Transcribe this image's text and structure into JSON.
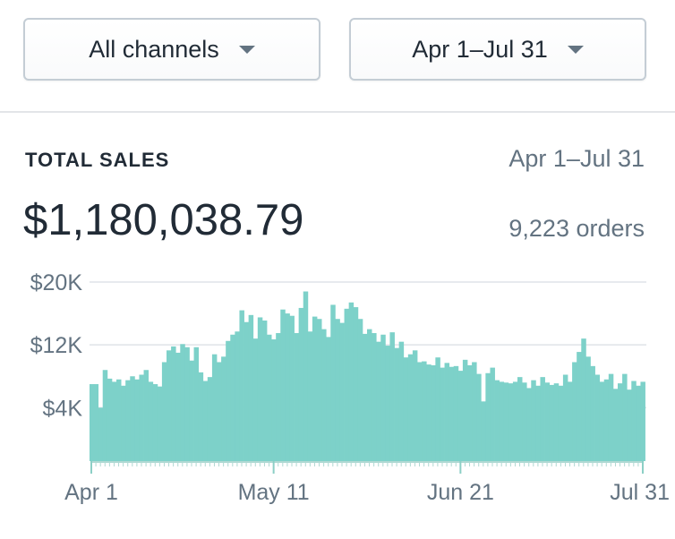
{
  "filters": {
    "channel_label": "All channels",
    "range_label": "Apr 1–Jul 31"
  },
  "card": {
    "title": "TOTAL SALES",
    "range": "Apr 1–Jul 31",
    "total": "$1,180,038.79",
    "orders": "9,223 orders"
  },
  "colors": {
    "area": "#7dd1c9",
    "grid": "#dfe3e8",
    "axis": "#b0d9d3"
  },
  "chart_data": {
    "type": "bar",
    "x_start": "Apr 1",
    "x_end": "Jul 31",
    "xtick_labels": [
      "Apr 1",
      "May 11",
      "Jun 21",
      "Jul 31"
    ],
    "xtick_days": [
      0,
      40,
      81,
      121
    ],
    "ytick_labels": [
      "$4K",
      "$12K",
      "$20K"
    ],
    "ytick_values": [
      4000,
      12000,
      20000
    ],
    "ylim": [
      -2800,
      20000
    ],
    "grid": true,
    "values": [
      7000,
      7000,
      4000,
      8800,
      7700,
      7300,
      7600,
      6800,
      7500,
      8000,
      7600,
      8200,
      8800,
      7300,
      7000,
      6700,
      9800,
      11300,
      11800,
      11000,
      12100,
      11700,
      10000,
      11700,
      8500,
      7400,
      7900,
      10800,
      9800,
      10500,
      12500,
      13300,
      13700,
      16400,
      14900,
      15800,
      12800,
      15500,
      15100,
      13300,
      12700,
      13500,
      16500,
      16000,
      15700,
      13500,
      16700,
      18800,
      13700,
      15600,
      15300,
      14000,
      13000,
      17100,
      15300,
      14800,
      16600,
      17400,
      16800,
      15300,
      13400,
      14000,
      13500,
      12400,
      13300,
      11900,
      13600,
      11600,
      12400,
      10400,
      10800,
      11300,
      9800,
      9900,
      9500,
      9400,
      10400,
      9100,
      9700,
      9200,
      9300,
      8700,
      10100,
      9400,
      9800,
      8300,
      4800,
      8400,
      9100,
      7500,
      7300,
      7200,
      7100,
      7300,
      7900,
      7200,
      6500,
      7500,
      6800,
      7900,
      7200,
      6900,
      7100,
      6800,
      8200,
      7300,
      9800,
      11100,
      12800,
      10500,
      9300,
      8200,
      7300,
      7600,
      8300,
      6400,
      7100,
      8300,
      6300,
      7400,
      6800,
      7300
    ]
  }
}
